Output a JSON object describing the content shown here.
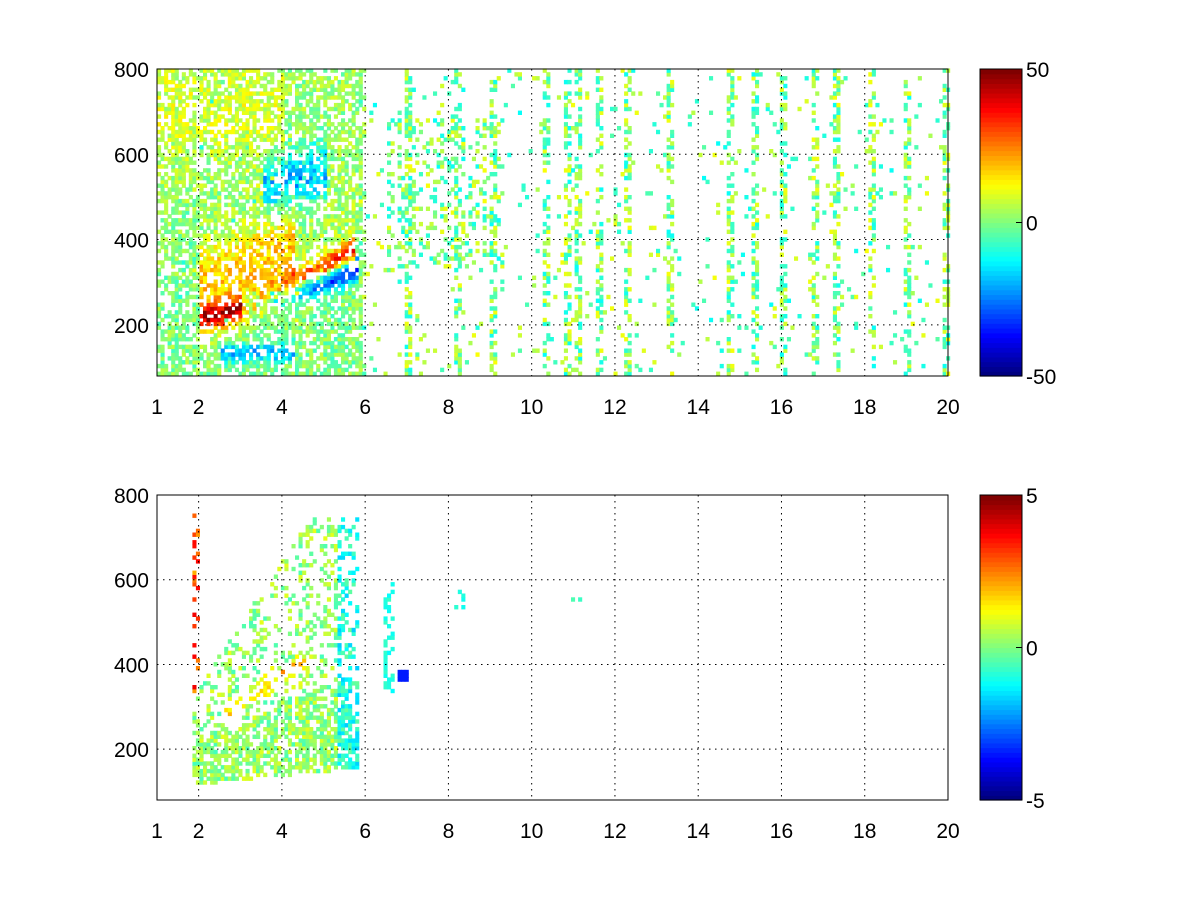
{
  "chart_data": [
    {
      "type": "heatmap",
      "panel": "top",
      "title": "",
      "xlabel": "",
      "ylabel": "",
      "xlim": [
        1,
        20
      ],
      "ylim": [
        80,
        800
      ],
      "x_ticks": [
        1,
        2,
        4,
        6,
        8,
        10,
        12,
        14,
        16,
        18,
        20
      ],
      "y_ticks": [
        200,
        400,
        600,
        800
      ],
      "x_tick_labels": [
        "1",
        "2",
        "4",
        "6",
        "8",
        "10",
        "12",
        "14",
        "16",
        "18",
        "20"
      ],
      "y_tick_labels": [
        "200",
        "400",
        "600",
        "800"
      ],
      "grid": true,
      "colormap": "jet",
      "clim": [
        -50,
        50
      ],
      "colorbar": {
        "placement": "right",
        "tick_values": [
          50,
          0,
          -50
        ],
        "tick_labels": [
          "50",
          "0",
          "-50"
        ]
      },
      "description_of_data": {
        "dense_region_x": [
          1,
          6
        ],
        "positive_band": {
          "x": [
            2,
            5.7
          ],
          "y_start": 210,
          "y_end": 370,
          "peak_value": 45
        },
        "negative_band": {
          "x": [
            3,
            5.8
          ],
          "y_start": 240,
          "y_end": 330,
          "peak_value": -45
        },
        "upper_negative_band": {
          "x": [
            3.5,
            5
          ],
          "y_center": 520,
          "peak_value": -25
        },
        "cluster": {
          "x": [
            6.5,
            9.3
          ],
          "y": [
            330,
            680
          ],
          "value_range": [
            -20,
            20
          ]
        },
        "sparse_stripes_x": [
          7,
          8.2,
          9,
          10.3,
          10.8,
          11.1,
          11.6,
          12.3,
          13.3,
          14.7,
          15.3,
          16.0,
          16.8,
          17.3,
          18.1,
          19.0,
          19.9
        ],
        "sparse_stripe_value_range": [
          -12,
          12
        ]
      }
    },
    {
      "type": "heatmap",
      "panel": "bottom",
      "title": "",
      "xlabel": "",
      "ylabel": "",
      "xlim": [
        1,
        20
      ],
      "ylim": [
        80,
        800
      ],
      "x_ticks": [
        1,
        2,
        4,
        6,
        8,
        10,
        12,
        14,
        16,
        18,
        20
      ],
      "y_ticks": [
        200,
        400,
        600,
        800
      ],
      "x_tick_labels": [
        "1",
        "2",
        "4",
        "6",
        "8",
        "10",
        "12",
        "14",
        "16",
        "18",
        "20"
      ],
      "y_tick_labels": [
        "200",
        "400",
        "600",
        "800"
      ],
      "grid": true,
      "colormap": "jet",
      "clim": [
        -5,
        5
      ],
      "colorbar": {
        "placement": "right",
        "tick_values": [
          5,
          0,
          -5
        ],
        "tick_labels": [
          "5",
          "0",
          "-5"
        ]
      },
      "description_of_data": {
        "dense_region_x": [
          1.8,
          5.8
        ],
        "dense_region_value_range": [
          -1.2,
          1.2
        ],
        "positive_streak": {
          "x": [
            2.5,
            4.5
          ],
          "y_start": 280,
          "y_end": 400,
          "peak_value": 2.5
        },
        "edge_column": {
          "x": 1.9,
          "y": [
            330,
            750
          ],
          "value_range": [
            2,
            4
          ]
        },
        "blue_spot": {
          "x": [
            6.7,
            7.0
          ],
          "y": [
            355,
            380
          ],
          "value": -3.5
        },
        "small_patches": [
          {
            "x": 6.5,
            "y": [
              330,
              600
            ],
            "value": -1
          },
          {
            "x": 8.2,
            "y": [
              520,
              570
            ],
            "value": -1
          },
          {
            "x": 11.0,
            "y": 550,
            "value": -0.5
          }
        ]
      }
    }
  ]
}
